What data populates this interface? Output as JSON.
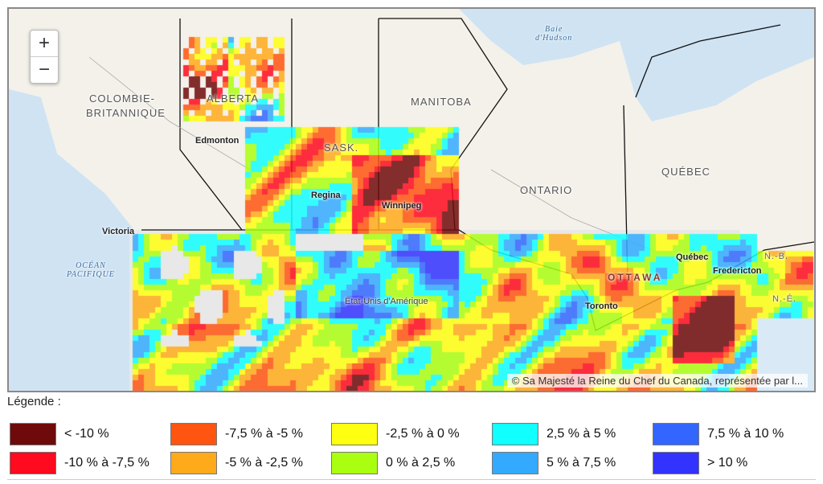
{
  "zoom_controls": {
    "zoom_in": "+",
    "zoom_out": "−"
  },
  "labels": {
    "bc_1": "COLOMBIE-",
    "bc_2": "BRITANNIQUE",
    "alberta": "ALBERTA",
    "sask": "SASK.",
    "manitoba": "MANITOBA",
    "ontario": "ONTARIO",
    "quebec_prov": "QUÉBEC",
    "hudson_1": "Baie",
    "hudson_2": "d'Hudson",
    "pacific_1": "OCÉAN",
    "pacific_2": "PACIFIQUE",
    "edmonton": "Edmonton",
    "regina": "Regina",
    "winnipeg": "Winnipeg",
    "victoria": "Victoria",
    "usa": "Etat-Unis d'Amérique",
    "ottawa": "OTTAWA",
    "toronto": "Toronto",
    "quebec_city": "Québec",
    "fredericton": "Fredericton",
    "nb": "N.-B.",
    "ns": "N.-É."
  },
  "attribution": "© Sa Majesté la Reine du Chef du Canada, représentée par l...",
  "legend": {
    "title": "Légende :",
    "items": [
      {
        "label": "< -10 %",
        "color": "#6e0a0a"
      },
      {
        "label": "-7,5 % à -5 %",
        "color": "#ff5511"
      },
      {
        "label": "-2,5 % à 0 %",
        "color": "#ffff11"
      },
      {
        "label": "2,5 % à 5 %",
        "color": "#11ffff"
      },
      {
        "label": "7,5 % à 10 %",
        "color": "#3366ff"
      },
      {
        "label": "-10 % à -7,5 %",
        "color": "#ff0a1e"
      },
      {
        "label": "-5 % à -2,5 %",
        "color": "#ffaa1a"
      },
      {
        "label": "0 % à 2,5 %",
        "color": "#aaff11"
      },
      {
        "label": "5 % à 7,5 %",
        "color": "#33aaff"
      },
      {
        "label": "> 10 %",
        "color": "#3333ff"
      }
    ]
  }
}
